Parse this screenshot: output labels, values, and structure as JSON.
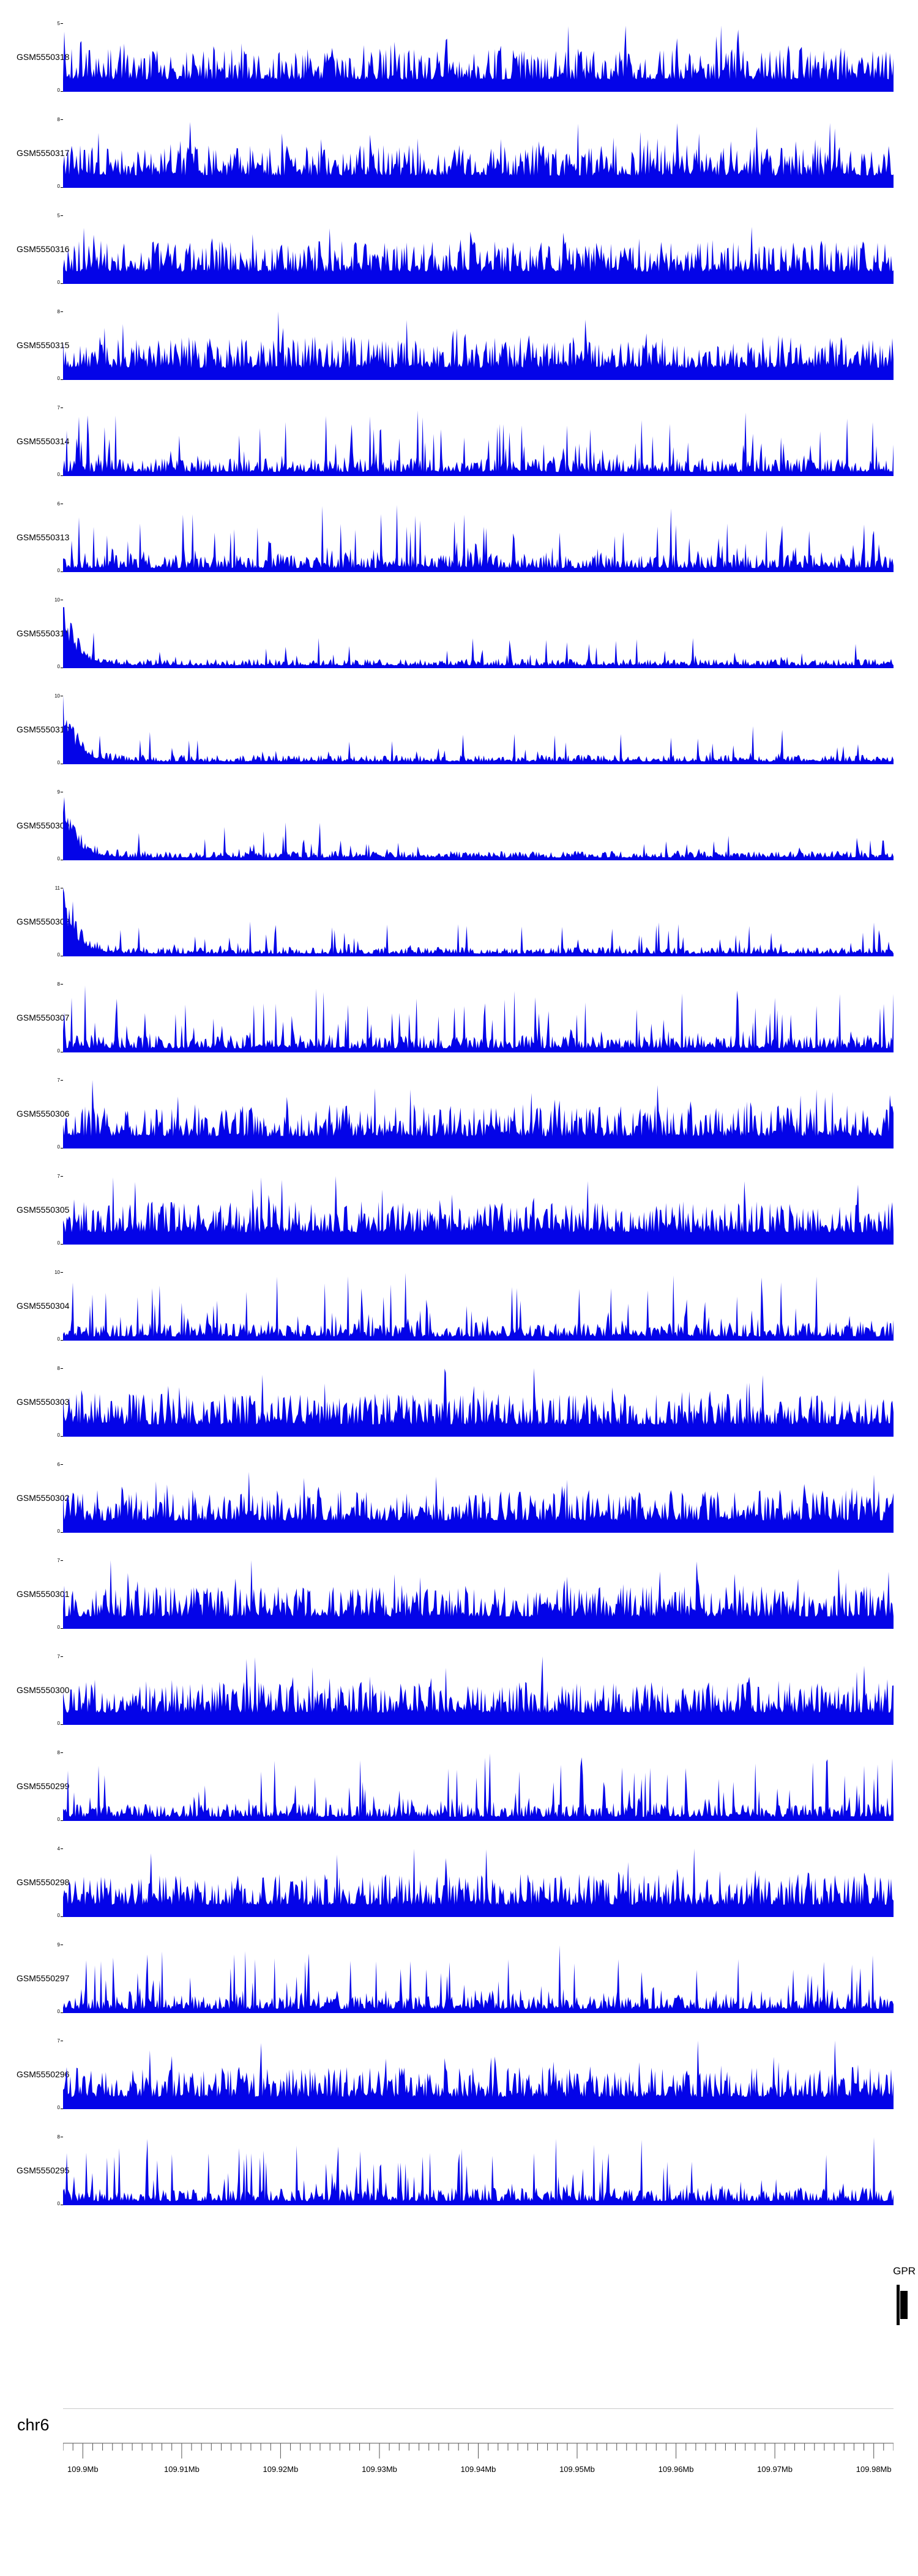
{
  "colors": {
    "signal": "#0404e8",
    "gene": "#000000",
    "separator": "#c9c9c9",
    "text": "#000000"
  },
  "chart_data": {
    "type": "area",
    "title": "",
    "description": "Genome browser coverage tracks (read-depth signal) over chr6:109.9-109.98Mb for 23 GSM samples",
    "x_axis": {
      "chromosome": "chr6",
      "range_mb": [
        109.898,
        109.982
      ],
      "tick_values_mb": [
        109.9,
        109.91,
        109.92,
        109.93,
        109.94,
        109.95,
        109.96,
        109.97,
        109.98
      ],
      "tick_labels": [
        "109.9Mb",
        "109.91Mb",
        "109.92Mb",
        "109.93Mb",
        "109.94Mb",
        "109.95Mb",
        "109.96Mb",
        "109.97Mb",
        "109.98Mb"
      ],
      "minor_tick_step_mb": 0.001
    },
    "signal_representation": "dense stochastic coverage signal; rendered from per-track profile + seed parameters",
    "tracks": [
      {
        "name": "GSM5550318",
        "ylim": [
          0,
          5
        ],
        "profile": "dense",
        "seed": 318
      },
      {
        "name": "GSM5550317",
        "ylim": [
          0,
          8
        ],
        "profile": "dense",
        "seed": 317
      },
      {
        "name": "GSM5550316",
        "ylim": [
          0,
          5
        ],
        "profile": "dense",
        "seed": 316
      },
      {
        "name": "GSM5550315",
        "ylim": [
          0,
          8
        ],
        "profile": "dense",
        "seed": 315
      },
      {
        "name": "GSM5550314",
        "ylim": [
          0,
          7
        ],
        "profile": "spiky",
        "seed": 314
      },
      {
        "name": "GSM5550313",
        "ylim": [
          0,
          6
        ],
        "profile": "spiky",
        "seed": 313
      },
      {
        "name": "GSM5550311",
        "ylim": [
          0,
          10
        ],
        "profile": "left-peak",
        "seed": 311
      },
      {
        "name": "GSM5550310",
        "ylim": [
          0,
          10
        ],
        "profile": "left-peak",
        "seed": 310
      },
      {
        "name": "GSM5550309",
        "ylim": [
          0,
          9
        ],
        "profile": "left-peak",
        "seed": 309
      },
      {
        "name": "GSM5550308",
        "ylim": [
          0,
          11
        ],
        "profile": "left-peak",
        "seed": 308
      },
      {
        "name": "GSM5550307",
        "ylim": [
          0,
          8
        ],
        "profile": "spiky",
        "seed": 307
      },
      {
        "name": "GSM5550306",
        "ylim": [
          0,
          7
        ],
        "profile": "dense",
        "seed": 306
      },
      {
        "name": "GSM5550305",
        "ylim": [
          0,
          7
        ],
        "profile": "dense",
        "seed": 305
      },
      {
        "name": "GSM5550304",
        "ylim": [
          0,
          10
        ],
        "profile": "spiky",
        "seed": 304
      },
      {
        "name": "GSM5550303",
        "ylim": [
          0,
          8
        ],
        "profile": "dense",
        "seed": 303
      },
      {
        "name": "GSM5550302",
        "ylim": [
          0,
          6
        ],
        "profile": "dense",
        "seed": 302
      },
      {
        "name": "GSM5550301",
        "ylim": [
          0,
          7
        ],
        "profile": "dense",
        "seed": 301
      },
      {
        "name": "GSM5550300",
        "ylim": [
          0,
          7
        ],
        "profile": "dense",
        "seed": 300
      },
      {
        "name": "GSM5550299",
        "ylim": [
          0,
          8
        ],
        "profile": "spiky",
        "seed": 299
      },
      {
        "name": "GSM5550298",
        "ylim": [
          0,
          4
        ],
        "profile": "dense",
        "seed": 298
      },
      {
        "name": "GSM5550297",
        "ylim": [
          0,
          9
        ],
        "profile": "spiky",
        "seed": 297
      },
      {
        "name": "GSM5550296",
        "ylim": [
          0,
          7
        ],
        "profile": "dense",
        "seed": 296
      },
      {
        "name": "GSM5550295",
        "ylim": [
          0,
          8
        ],
        "profile": "spiky",
        "seed": 295
      }
    ],
    "gene_track": {
      "label": "GPR",
      "gene_position": "right edge of plotted window"
    }
  }
}
